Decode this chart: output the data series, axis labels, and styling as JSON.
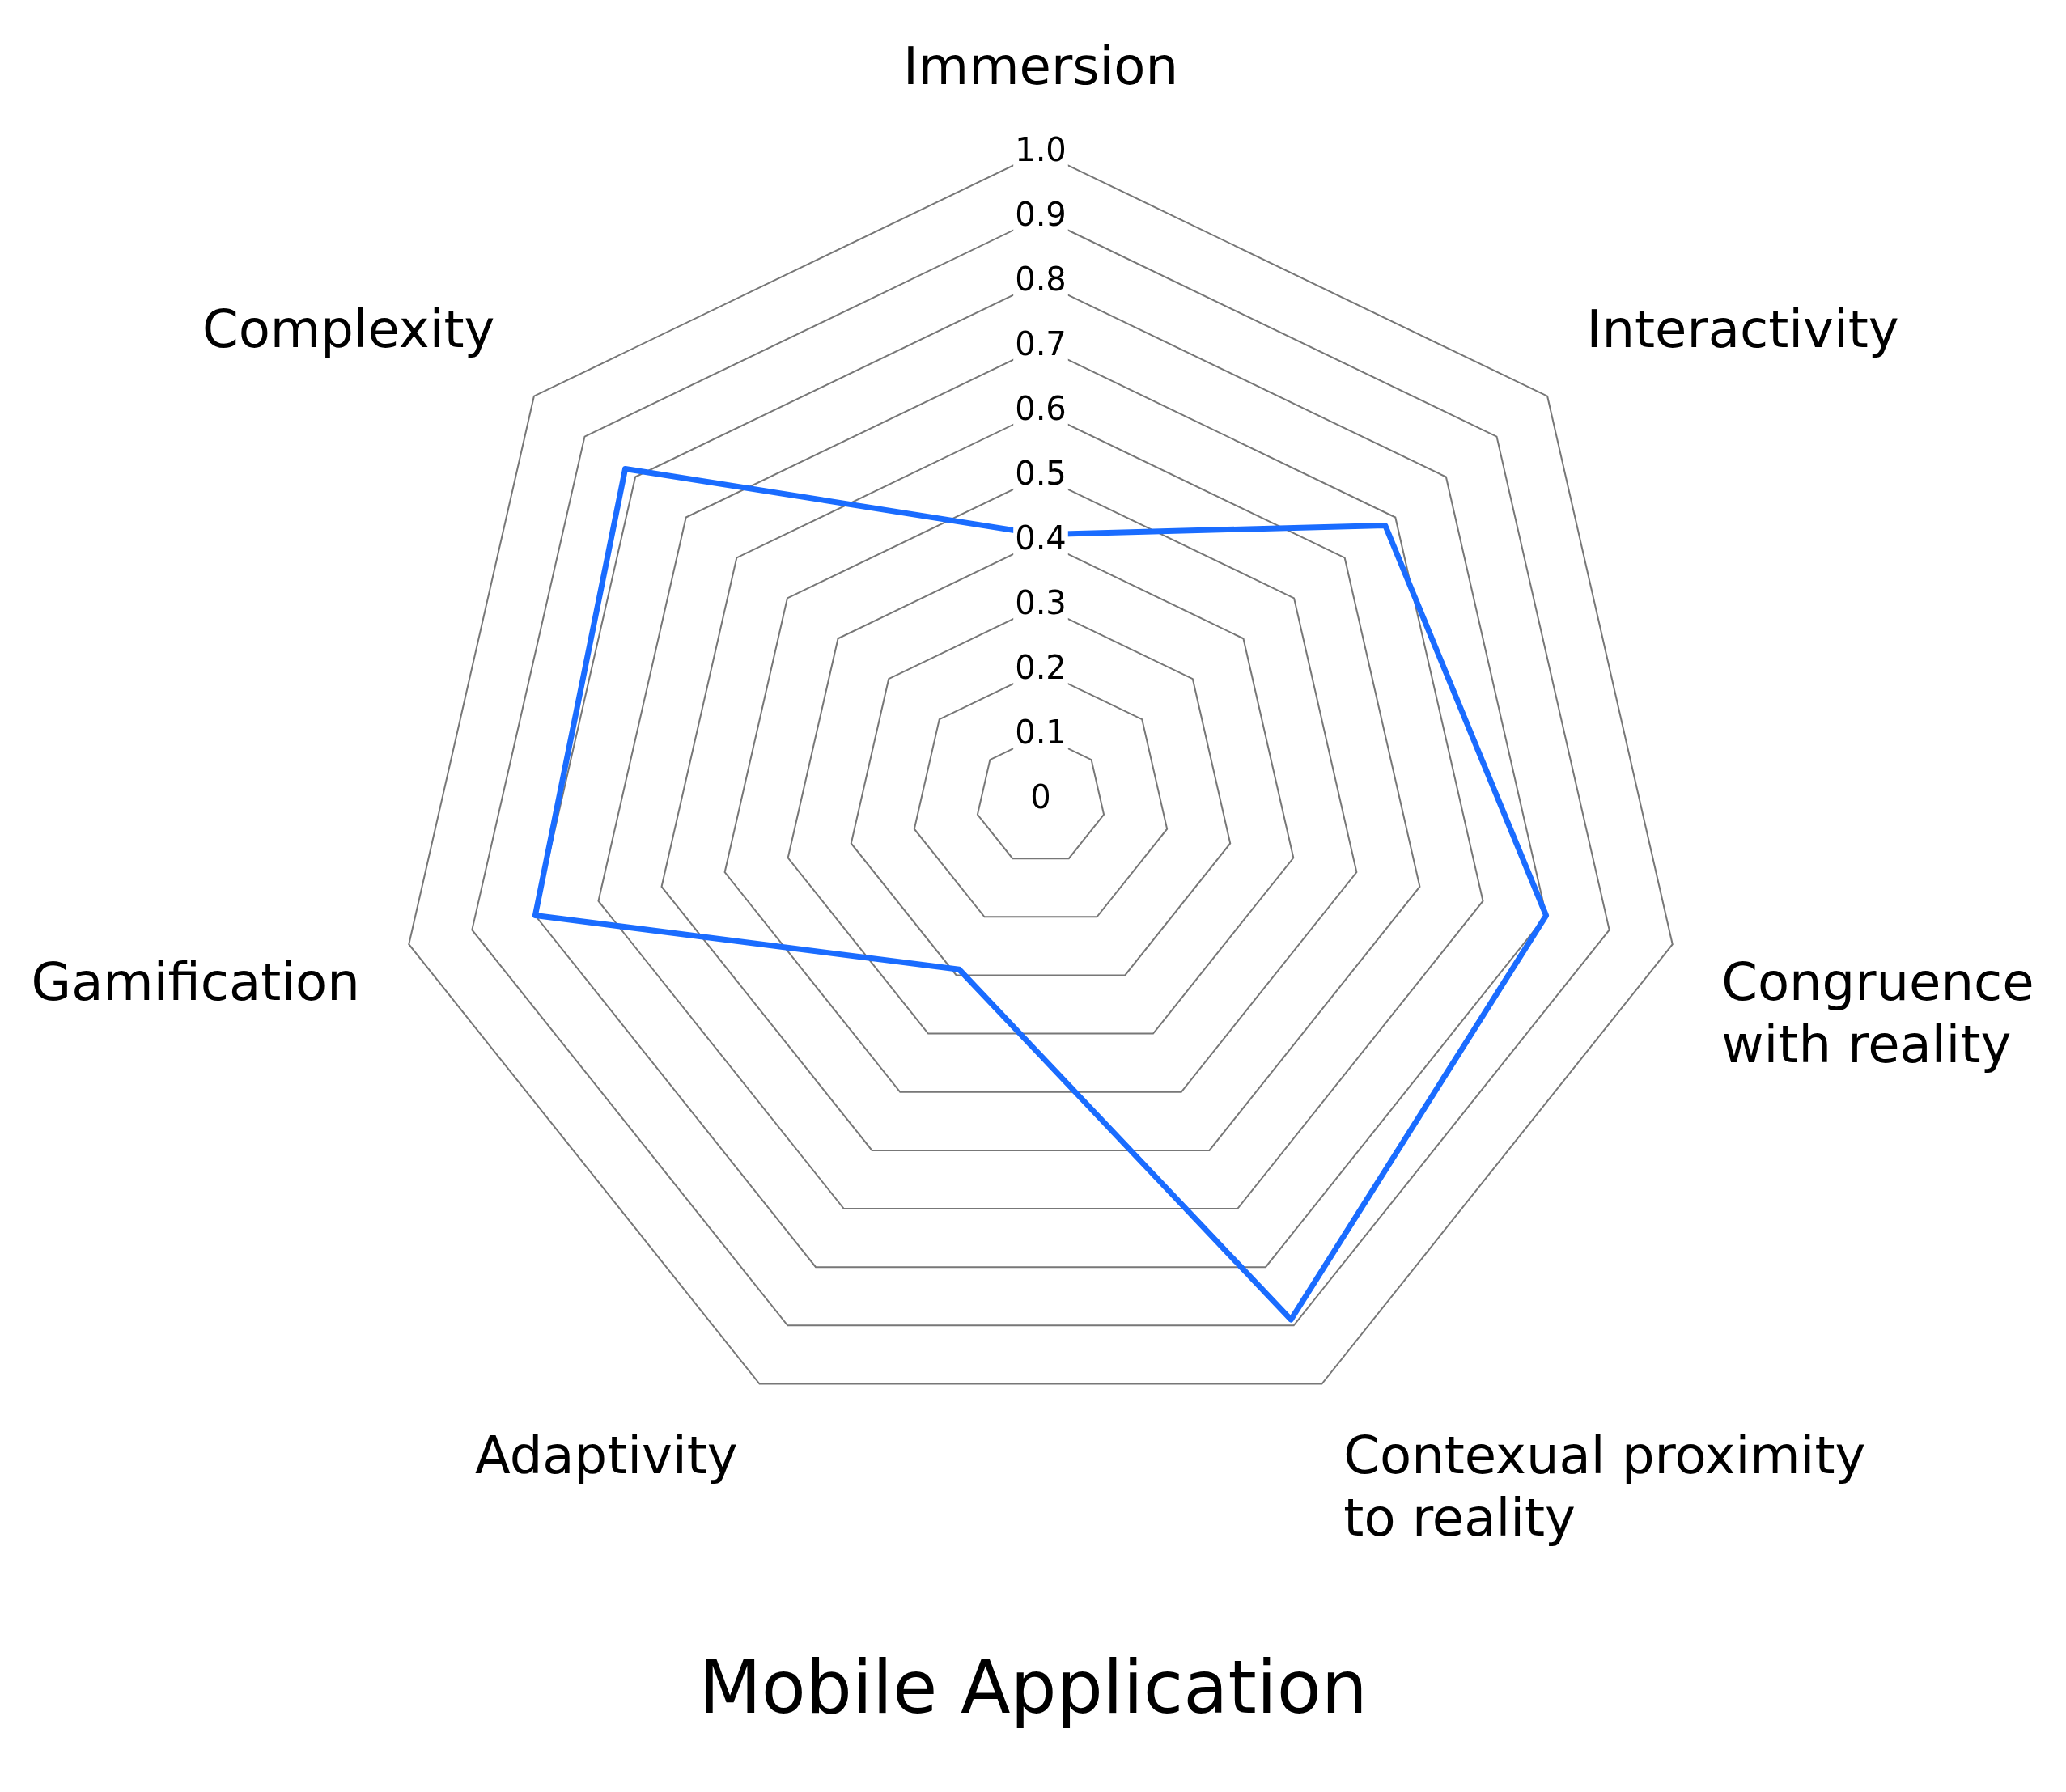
{
  "chart_data": {
    "type": "radar",
    "title": "Mobile Application",
    "categories": [
      "Immersion",
      "Interactivity",
      "Congruence with reality",
      "Contexual proximity to reality",
      "Adaptivity",
      "Gamification",
      "Complexity"
    ],
    "series": [
      {
        "color": "#1a6cff",
        "values": [
          0.41,
          0.68,
          0.8,
          0.89,
          0.29,
          0.8,
          0.82
        ]
      }
    ],
    "ylim": [
      0,
      1
    ],
    "yticks": [
      0,
      0.1,
      0.2,
      0.3,
      0.4,
      0.5,
      0.6,
      0.7,
      0.8,
      0.9,
      {
        "value": 1,
        "label": "1.0"
      }
    ],
    "grid": true,
    "legend": false,
    "marker": "none",
    "line_style": "solid"
  }
}
